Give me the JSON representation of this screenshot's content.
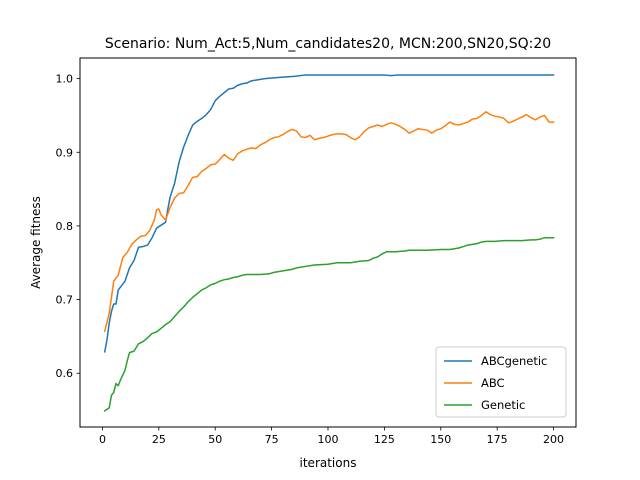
{
  "chart_data": {
    "type": "line",
    "title": "Scenario: Num_Act:5,Num_candidates20, MCN:200,SN20,SQ:20",
    "xlabel": "iterations",
    "ylabel": "Average fitness",
    "xlim": [
      -9.95,
      209.95
    ],
    "ylim": [
      0.527,
      1.028
    ],
    "xticks": [
      0,
      25,
      50,
      75,
      100,
      125,
      150,
      175,
      200
    ],
    "yticks": [
      0.6,
      0.7,
      0.8,
      0.9,
      1.0
    ],
    "ytick_labels": [
      "0.6",
      "0.7",
      "0.8",
      "0.9",
      "1.0"
    ],
    "grid": false,
    "legend_position": "lower right",
    "series": [
      {
        "name": "ABCgenetic",
        "color": "#1f77b4",
        "points": [
          [
            1,
            0.629
          ],
          [
            2,
            0.645
          ],
          [
            3,
            0.668
          ],
          [
            4,
            0.684
          ],
          [
            5,
            0.694
          ],
          [
            6,
            0.694
          ],
          [
            7,
            0.713
          ],
          [
            8,
            0.717
          ],
          [
            10,
            0.725
          ],
          [
            12,
            0.743
          ],
          [
            14,
            0.753
          ],
          [
            16,
            0.771
          ],
          [
            18,
            0.772
          ],
          [
            20,
            0.774
          ],
          [
            22,
            0.784
          ],
          [
            24,
            0.797
          ],
          [
            26,
            0.801
          ],
          [
            28,
            0.805
          ],
          [
            29,
            0.823
          ],
          [
            30,
            0.839
          ],
          [
            32,
            0.858
          ],
          [
            34,
            0.887
          ],
          [
            36,
            0.907
          ],
          [
            38,
            0.923
          ],
          [
            40,
            0.937
          ],
          [
            42,
            0.942
          ],
          [
            44,
            0.946
          ],
          [
            46,
            0.951
          ],
          [
            48,
            0.958
          ],
          [
            50,
            0.97
          ],
          [
            52,
            0.976
          ],
          [
            54,
            0.981
          ],
          [
            56,
            0.986
          ],
          [
            58,
            0.987
          ],
          [
            60,
            0.991
          ],
          [
            62,
            0.993
          ],
          [
            64,
            0.994
          ],
          [
            66,
            0.997
          ],
          [
            68,
            0.998
          ],
          [
            70,
            0.999
          ],
          [
            72,
            1.0
          ],
          [
            76,
            1.001
          ],
          [
            80,
            1.002
          ],
          [
            85,
            1.003
          ],
          [
            90,
            1.005
          ],
          [
            100,
            1.005
          ],
          [
            110,
            1.005
          ],
          [
            120,
            1.005
          ],
          [
            125,
            1.005
          ],
          [
            128,
            1.004
          ],
          [
            131,
            1.005
          ],
          [
            135,
            1.005
          ],
          [
            150,
            1.005
          ],
          [
            175,
            1.005
          ],
          [
            200,
            1.005
          ]
        ]
      },
      {
        "name": "ABC",
        "color": "#ff7f0e",
        "points": [
          [
            1,
            0.657
          ],
          [
            3,
            0.681
          ],
          [
            5,
            0.725
          ],
          [
            7,
            0.733
          ],
          [
            9,
            0.757
          ],
          [
            11,
            0.764
          ],
          [
            13,
            0.775
          ],
          [
            15,
            0.781
          ],
          [
            17,
            0.786
          ],
          [
            19,
            0.787
          ],
          [
            21,
            0.794
          ],
          [
            23,
            0.808
          ],
          [
            24,
            0.822
          ],
          [
            25,
            0.823
          ],
          [
            26,
            0.815
          ],
          [
            28,
            0.808
          ],
          [
            30,
            0.825
          ],
          [
            32,
            0.838
          ],
          [
            34,
            0.844
          ],
          [
            36,
            0.845
          ],
          [
            38,
            0.855
          ],
          [
            40,
            0.866
          ],
          [
            42,
            0.867
          ],
          [
            44,
            0.874
          ],
          [
            46,
            0.878
          ],
          [
            48,
            0.883
          ],
          [
            50,
            0.884
          ],
          [
            52,
            0.89
          ],
          [
            54,
            0.897
          ],
          [
            56,
            0.892
          ],
          [
            58,
            0.889
          ],
          [
            60,
            0.898
          ],
          [
            62,
            0.902
          ],
          [
            64,
            0.904
          ],
          [
            66,
            0.906
          ],
          [
            68,
            0.905
          ],
          [
            70,
            0.91
          ],
          [
            72,
            0.913
          ],
          [
            74,
            0.917
          ],
          [
            76,
            0.92
          ],
          [
            78,
            0.921
          ],
          [
            80,
            0.924
          ],
          [
            82,
            0.928
          ],
          [
            84,
            0.931
          ],
          [
            86,
            0.929
          ],
          [
            88,
            0.921
          ],
          [
            90,
            0.92
          ],
          [
            92,
            0.923
          ],
          [
            94,
            0.917
          ],
          [
            96,
            0.919
          ],
          [
            98,
            0.92
          ],
          [
            100,
            0.922
          ],
          [
            102,
            0.924
          ],
          [
            104,
            0.925
          ],
          [
            106,
            0.925
          ],
          [
            108,
            0.924
          ],
          [
            110,
            0.92
          ],
          [
            112,
            0.917
          ],
          [
            114,
            0.921
          ],
          [
            116,
            0.928
          ],
          [
            118,
            0.933
          ],
          [
            120,
            0.935
          ],
          [
            122,
            0.937
          ],
          [
            124,
            0.935
          ],
          [
            126,
            0.938
          ],
          [
            128,
            0.94
          ],
          [
            130,
            0.938
          ],
          [
            132,
            0.935
          ],
          [
            134,
            0.931
          ],
          [
            136,
            0.926
          ],
          [
            138,
            0.929
          ],
          [
            140,
            0.932
          ],
          [
            142,
            0.931
          ],
          [
            144,
            0.93
          ],
          [
            146,
            0.926
          ],
          [
            148,
            0.93
          ],
          [
            150,
            0.932
          ],
          [
            152,
            0.936
          ],
          [
            154,
            0.941
          ],
          [
            156,
            0.938
          ],
          [
            158,
            0.937
          ],
          [
            160,
            0.939
          ],
          [
            162,
            0.941
          ],
          [
            164,
            0.945
          ],
          [
            166,
            0.946
          ],
          [
            168,
            0.95
          ],
          [
            170,
            0.955
          ],
          [
            172,
            0.951
          ],
          [
            174,
            0.949
          ],
          [
            176,
            0.948
          ],
          [
            178,
            0.946
          ],
          [
            180,
            0.94
          ],
          [
            182,
            0.942
          ],
          [
            184,
            0.945
          ],
          [
            186,
            0.948
          ],
          [
            188,
            0.951
          ],
          [
            190,
            0.947
          ],
          [
            192,
            0.944
          ],
          [
            194,
            0.948
          ],
          [
            196,
            0.95
          ],
          [
            198,
            0.941
          ],
          [
            200,
            0.941
          ]
        ]
      },
      {
        "name": "Genetic",
        "color": "#2ca02c",
        "points": [
          [
            1,
            0.549
          ],
          [
            3,
            0.553
          ],
          [
            4,
            0.57
          ],
          [
            5,
            0.574
          ],
          [
            6,
            0.586
          ],
          [
            7,
            0.583
          ],
          [
            8,
            0.591
          ],
          [
            10,
            0.604
          ],
          [
            11,
            0.617
          ],
          [
            12,
            0.628
          ],
          [
            14,
            0.63
          ],
          [
            16,
            0.64
          ],
          [
            18,
            0.643
          ],
          [
            20,
            0.648
          ],
          [
            22,
            0.654
          ],
          [
            24,
            0.656
          ],
          [
            26,
            0.661
          ],
          [
            28,
            0.666
          ],
          [
            30,
            0.67
          ],
          [
            32,
            0.677
          ],
          [
            34,
            0.684
          ],
          [
            36,
            0.69
          ],
          [
            38,
            0.697
          ],
          [
            40,
            0.703
          ],
          [
            42,
            0.708
          ],
          [
            44,
            0.713
          ],
          [
            46,
            0.716
          ],
          [
            48,
            0.72
          ],
          [
            50,
            0.722
          ],
          [
            52,
            0.725
          ],
          [
            54,
            0.727
          ],
          [
            56,
            0.728
          ],
          [
            58,
            0.73
          ],
          [
            60,
            0.731
          ],
          [
            62,
            0.733
          ],
          [
            64,
            0.734
          ],
          [
            70,
            0.734
          ],
          [
            74,
            0.735
          ],
          [
            76,
            0.737
          ],
          [
            80,
            0.739
          ],
          [
            84,
            0.741
          ],
          [
            86,
            0.743
          ],
          [
            90,
            0.745
          ],
          [
            94,
            0.747
          ],
          [
            100,
            0.748
          ],
          [
            104,
            0.75
          ],
          [
            110,
            0.75
          ],
          [
            114,
            0.752
          ],
          [
            118,
            0.753
          ],
          [
            120,
            0.756
          ],
          [
            122,
            0.758
          ],
          [
            124,
            0.762
          ],
          [
            126,
            0.765
          ],
          [
            130,
            0.765
          ],
          [
            134,
            0.766
          ],
          [
            136,
            0.767
          ],
          [
            144,
            0.767
          ],
          [
            150,
            0.768
          ],
          [
            154,
            0.768
          ],
          [
            158,
            0.77
          ],
          [
            160,
            0.772
          ],
          [
            162,
            0.774
          ],
          [
            164,
            0.775
          ],
          [
            166,
            0.776
          ],
          [
            168,
            0.778
          ],
          [
            170,
            0.779
          ],
          [
            174,
            0.779
          ],
          [
            178,
            0.78
          ],
          [
            182,
            0.78
          ],
          [
            186,
            0.78
          ],
          [
            190,
            0.781
          ],
          [
            192,
            0.781
          ],
          [
            194,
            0.782
          ],
          [
            196,
            0.784
          ],
          [
            200,
            0.784
          ]
        ]
      }
    ]
  }
}
